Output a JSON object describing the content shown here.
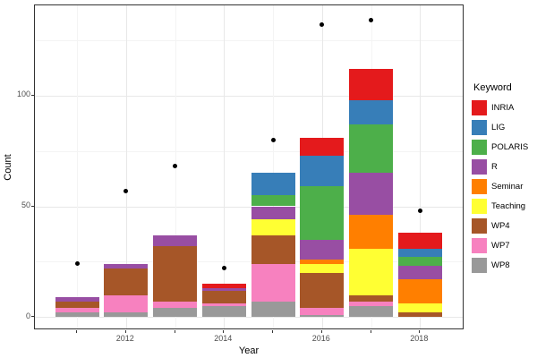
{
  "chart_data": {
    "type": "bar",
    "stacked": true,
    "overlay": "scatter",
    "title": "",
    "xlabel": "Year",
    "ylabel": "Count",
    "legend_title": "Keyword",
    "legend_position": "right",
    "grid": true,
    "x": [
      2011,
      2012,
      2013,
      2014,
      2015,
      2016,
      2017,
      2018
    ],
    "x_labeled_ticks": [
      2012,
      2014,
      2016,
      2018
    ],
    "ylim": [
      0,
      140
    ],
    "y_major_ticks": [
      0,
      50,
      100
    ],
    "y_minor_ticks": [
      25,
      75,
      125
    ],
    "series": [
      {
        "name": "INRIA",
        "color": "#e41a1c",
        "values": [
          0,
          0,
          0,
          2,
          0,
          8,
          14,
          7
        ]
      },
      {
        "name": "LIG",
        "color": "#377eb8",
        "values": [
          0,
          0,
          0,
          0,
          10,
          14,
          11,
          4
        ]
      },
      {
        "name": "POLARIS",
        "color": "#4daf4a",
        "values": [
          0,
          0,
          0,
          0,
          5,
          24,
          22,
          4
        ]
      },
      {
        "name": "R",
        "color": "#984ea3",
        "values": [
          2,
          2,
          5,
          1,
          6,
          9,
          19,
          6
        ]
      },
      {
        "name": "Seminar",
        "color": "#ff7f00",
        "values": [
          0,
          0,
          0,
          0,
          0,
          2,
          15,
          11
        ]
      },
      {
        "name": "Teaching",
        "color": "#ffff33",
        "values": [
          0,
          0,
          0,
          0,
          7,
          4,
          21,
          4
        ]
      },
      {
        "name": "WP4",
        "color": "#a65628",
        "values": [
          3,
          12,
          25,
          6,
          13,
          16,
          3,
          2
        ]
      },
      {
        "name": "WP7",
        "color": "#f781bf",
        "values": [
          2,
          8,
          3,
          1,
          17,
          3,
          2,
          0
        ]
      },
      {
        "name": "WP8",
        "color": "#999999",
        "values": [
          2,
          2,
          4,
          5,
          7,
          1,
          5,
          0
        ]
      }
    ],
    "points": {
      "name": "yearly-total-dots",
      "color": "#000000",
      "values": [
        24,
        57,
        68,
        22,
        80,
        132,
        134,
        48
      ]
    }
  }
}
